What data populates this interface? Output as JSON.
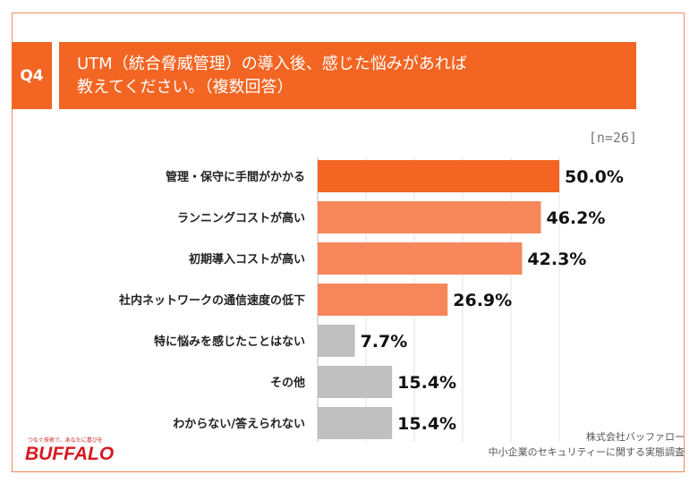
{
  "header": {
    "badge": "Q4",
    "question": "UTM（統合脅威管理）の導入後、感じた悩みがあれば\n教えてください。（複数回答）"
  },
  "sample_size": "[n=26]",
  "chart_data": {
    "type": "bar",
    "orientation": "horizontal",
    "title": "UTM（統合脅威管理）の導入後、感じた悩みがあれば教えてください。（複数回答）",
    "categories": [
      "管理・保守に手間がかかる",
      "ランニングコストが高い",
      "初期導入コストが高い",
      "社内ネットワークの通信速度の低下",
      "特に悩みを感じたことはない",
      "その他",
      "わからない/答えられない"
    ],
    "values": [
      50.0,
      46.2,
      42.3,
      26.9,
      7.7,
      15.4,
      15.4
    ],
    "value_labels": [
      "50.0%",
      "46.2%",
      "42.3%",
      "26.9%",
      "7.7%",
      "15.4%",
      "15.4%"
    ],
    "bar_colors": [
      "#f26522",
      "#f7875a",
      "#f7875a",
      "#f7875a",
      "#c0c0c0",
      "#c0c0c0",
      "#c0c0c0"
    ],
    "xlim": [
      0,
      50
    ],
    "grid": true,
    "xlabel": "",
    "ylabel": ""
  },
  "footer": {
    "source_company": "株式会社バッファロー",
    "source_survey": "中小企業のセキュリティーに関する実態調査"
  },
  "logo": {
    "tagline": "つなぐ技術で、あなたに喜びを",
    "brand": "BUFFALO",
    "color": "#d71920"
  },
  "colors": {
    "accent": "#f26522",
    "border": "#f08a5d"
  }
}
